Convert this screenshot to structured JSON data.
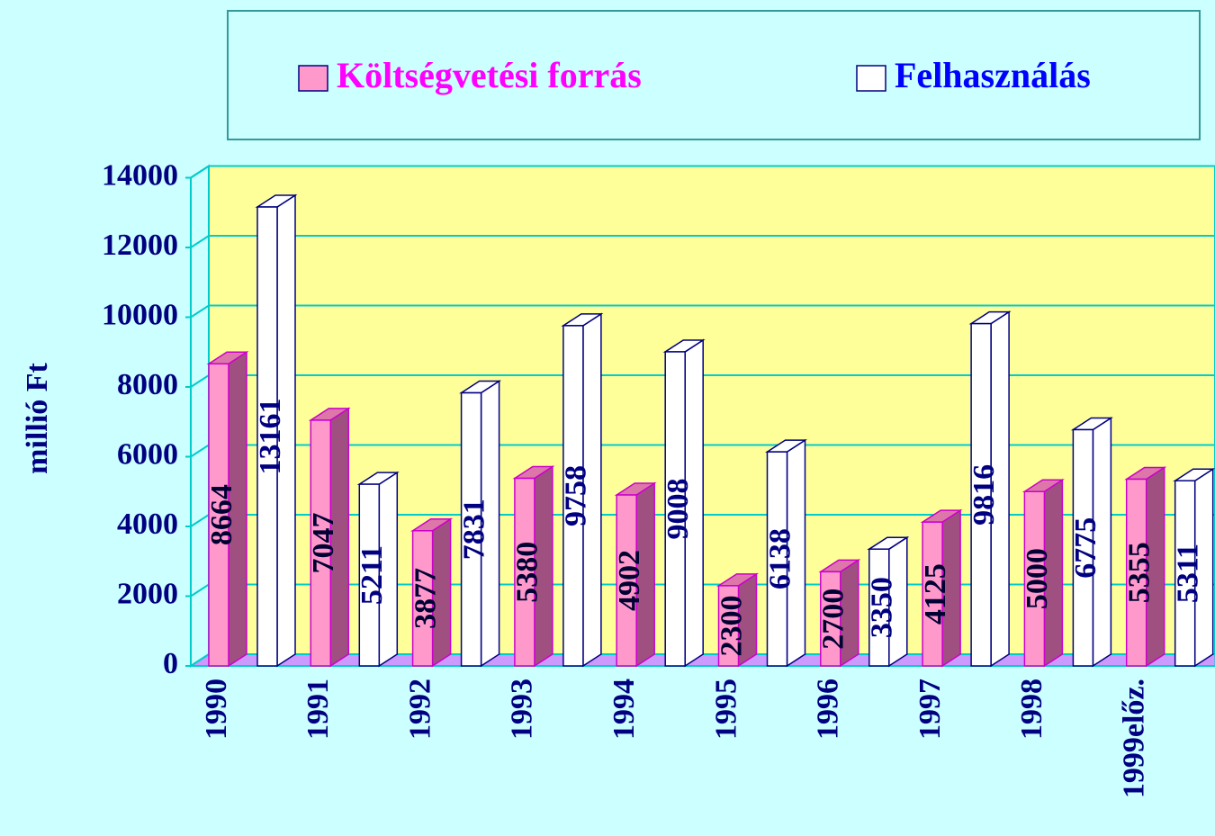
{
  "chart_data": {
    "type": "bar3d",
    "y_label": "millió Ft",
    "categories": [
      "1990",
      "1991",
      "1992",
      "1993",
      "1994",
      "1995",
      "1996",
      "1997",
      "1998",
      "1999előz."
    ],
    "series": [
      {
        "name": "Költségvetési forrás",
        "color": "#ff99cc",
        "edge_color": "#cc00cc",
        "values": [
          8664,
          7047,
          3877,
          5380,
          4902,
          2300,
          2700,
          4125,
          5000,
          5355
        ]
      },
      {
        "name": "Felhasználás",
        "color": "#ffffff",
        "edge_color": "#000080",
        "values": [
          13161,
          5211,
          7831,
          9758,
          9008,
          6138,
          3350,
          9816,
          6775,
          5311
        ]
      }
    ],
    "ylim": [
      0,
      14000
    ],
    "yticks": [
      0,
      2000,
      4000,
      6000,
      8000,
      10000,
      12000,
      14000
    ],
    "grid": true
  }
}
